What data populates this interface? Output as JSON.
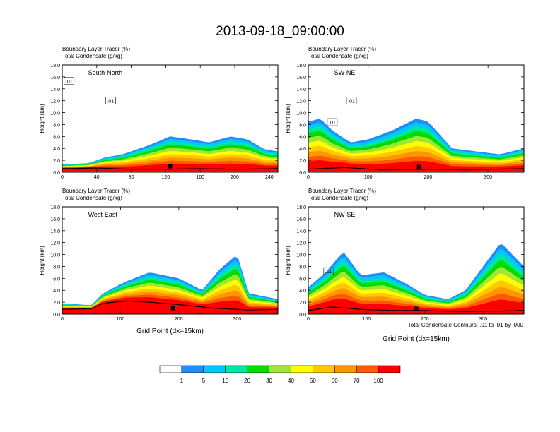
{
  "title": "2013-09-18_09:00:00",
  "footnote": "Total Condensate Contours: .01 to .01 by .000",
  "colorbar": {
    "labels": [
      "1",
      "5",
      "10",
      "20",
      "30",
      "40",
      "50",
      "60",
      "70",
      "100"
    ],
    "colors": [
      "#ffffff",
      "#1e8cff",
      "#00c8ff",
      "#00e6a0",
      "#00dc00",
      "#a0e632",
      "#ffff00",
      "#ffc800",
      "#ff9600",
      "#ff5a00",
      "#ff0000"
    ]
  },
  "chart_data": [
    {
      "type": "area",
      "panel": "South-North",
      "titles": [
        "Boundary Layer Tracer    (%)",
        "Total Condensate   (g/kg)"
      ],
      "ylabel": "Height (km)",
      "xlabel": "",
      "xlim": [
        0,
        250
      ],
      "ylim": [
        0,
        18
      ],
      "xticks": [
        0,
        40,
        80,
        120,
        160,
        200,
        240
      ],
      "yticks": [
        "0.0",
        "2.0",
        "4.0",
        "6.0",
        "8.0",
        "10.0",
        "12.0",
        "14.0",
        "16.0",
        "18.0"
      ],
      "contour_labels": [
        {
          "text": ".01",
          "x": 8,
          "y": 15.3
        },
        {
          "text": ".01",
          "x": 56,
          "y": 12
        }
      ],
      "terrain": [
        [
          0,
          0.6
        ],
        [
          40,
          0.7
        ],
        [
          80,
          0.5
        ],
        [
          120,
          0.5
        ],
        [
          160,
          0.6
        ],
        [
          200,
          0.5
        ],
        [
          250,
          0.6
        ]
      ],
      "tracer_top": [
        [
          0,
          1.3
        ],
        [
          30,
          1.5
        ],
        [
          50,
          2.5
        ],
        [
          70,
          3.0
        ],
        [
          100,
          4.5
        ],
        [
          125,
          6.0
        ],
        [
          150,
          5.5
        ],
        [
          170,
          5.0
        ],
        [
          195,
          6.0
        ],
        [
          215,
          5.5
        ],
        [
          235,
          3.8
        ],
        [
          250,
          3.5
        ]
      ],
      "marker": {
        "x": 125,
        "y": 1.0
      }
    },
    {
      "type": "area",
      "panel": "SW-NE",
      "titles": [
        "Boundary Layer Tracer    (%)",
        "Total Condensate   (g/kg)"
      ],
      "ylabel": "Height (km)",
      "xlabel": "",
      "xlim": [
        0,
        360
      ],
      "ylim": [
        0,
        18
      ],
      "xticks": [
        0,
        100,
        200,
        300
      ],
      "yticks": [
        "0.0",
        "2.0",
        "4.0",
        "6.0",
        "8.0",
        "10.0",
        "12.0",
        "14.0",
        "16.0",
        "18.0"
      ],
      "contour_labels": [
        {
          "text": ".01",
          "x": 40,
          "y": 8.4
        },
        {
          "text": ".01",
          "x": 72,
          "y": 12
        }
      ],
      "terrain": [
        [
          0,
          0.5
        ],
        [
          60,
          0.8
        ],
        [
          120,
          0.4
        ],
        [
          200,
          0.5
        ],
        [
          260,
          0.4
        ],
        [
          360,
          0.6
        ]
      ],
      "tracer_top": [
        [
          0,
          8.5
        ],
        [
          20,
          9
        ],
        [
          40,
          7
        ],
        [
          70,
          5
        ],
        [
          100,
          5.5
        ],
        [
          140,
          7
        ],
        [
          180,
          9
        ],
        [
          200,
          8.5
        ],
        [
          240,
          4
        ],
        [
          280,
          3.5
        ],
        [
          320,
          3.0
        ],
        [
          360,
          4.0
        ]
      ],
      "marker": {
        "x": 185,
        "y": 0.9
      }
    },
    {
      "type": "area",
      "panel": "West-East",
      "titles": [
        "Boundary Layer Tracer    (%)",
        "Total Condensate   (g/kg)"
      ],
      "ylabel": "Height (km)",
      "xlabel": "Grid Point (dx=15km)",
      "xlim": [
        0,
        370
      ],
      "ylim": [
        0,
        18
      ],
      "xticks": [
        0,
        100,
        200,
        300
      ],
      "yticks": [
        "0.0",
        "2.0",
        "4.0",
        "6.0",
        "8.0",
        "10.0",
        "12.0",
        "14.0",
        "16.0",
        "18.0"
      ],
      "contour_labels": [],
      "terrain": [
        [
          0,
          0.8
        ],
        [
          50,
          0.9
        ],
        [
          70,
          1.8
        ],
        [
          110,
          2.2
        ],
        [
          150,
          2.0
        ],
        [
          200,
          1.6
        ],
        [
          260,
          1.0
        ],
        [
          320,
          0.7
        ],
        [
          370,
          0.8
        ]
      ],
      "tracer_top": [
        [
          0,
          1.8
        ],
        [
          50,
          1.5
        ],
        [
          70,
          3.5
        ],
        [
          110,
          5.5
        ],
        [
          150,
          7.0
        ],
        [
          200,
          6.0
        ],
        [
          240,
          4.0
        ],
        [
          270,
          7.5
        ],
        [
          300,
          10
        ],
        [
          320,
          3.5
        ],
        [
          370,
          2.5
        ]
      ],
      "marker": {
        "x": 190,
        "y": 1.0
      }
    },
    {
      "type": "area",
      "panel": "NW-SE",
      "titles": [
        "Boundary Layer Tracer    (%)",
        "Total Condensate   (g/kg)"
      ],
      "ylabel": "Height (km)",
      "xlabel": "Grid Point (dx=15km)",
      "xlim": [
        0,
        370
      ],
      "ylim": [
        0,
        18
      ],
      "xticks": [
        0,
        100,
        200,
        300
      ],
      "yticks": [
        "0.0",
        "2.0",
        "4.0",
        "6.0",
        "8.0",
        "10.0",
        "12.0",
        "14.0",
        "16.0",
        "18.0"
      ],
      "contour_labels": [
        {
          "text": ".01",
          "x": 35,
          "y": 7.2
        }
      ],
      "terrain": [
        [
          0,
          0.6
        ],
        [
          40,
          1.2
        ],
        [
          90,
          0.8
        ],
        [
          150,
          0.6
        ],
        [
          200,
          0.6
        ],
        [
          260,
          0.4
        ],
        [
          320,
          0.5
        ],
        [
          370,
          0.6
        ]
      ],
      "tracer_top": [
        [
          0,
          4.5
        ],
        [
          30,
          7
        ],
        [
          60,
          10.5
        ],
        [
          90,
          6.5
        ],
        [
          130,
          7
        ],
        [
          170,
          5
        ],
        [
          200,
          3.2
        ],
        [
          240,
          2.5
        ],
        [
          270,
          4
        ],
        [
          300,
          8
        ],
        [
          330,
          12
        ],
        [
          370,
          8
        ]
      ],
      "marker": {
        "x": 185,
        "y": 0.9
      }
    }
  ]
}
